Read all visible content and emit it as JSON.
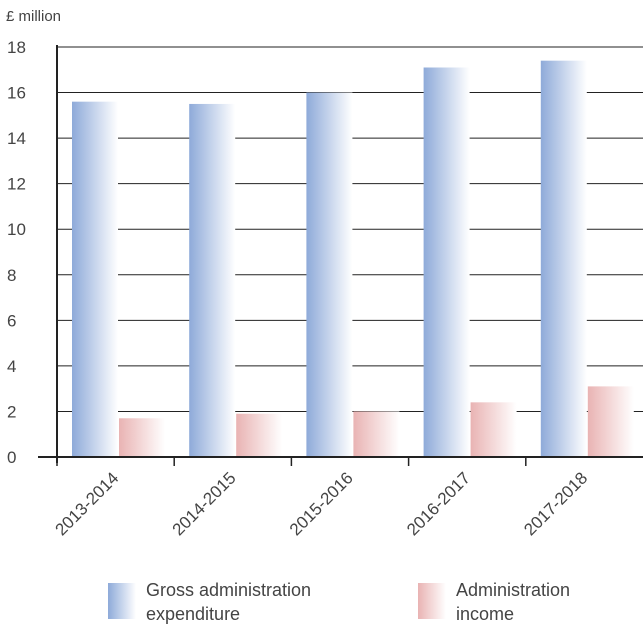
{
  "chart_data": {
    "type": "bar",
    "unit_label": "£ million",
    "categories": [
      "2013-2014",
      "2014-2015",
      "2015-2016",
      "2016-2017",
      "2017-2018"
    ],
    "series": [
      {
        "name": "Gross administration expenditure",
        "values": [
          15.6,
          15.5,
          16.0,
          17.1,
          17.4
        ],
        "color": "#8eaad9"
      },
      {
        "name": "Administration income",
        "values": [
          1.7,
          1.9,
          2.0,
          2.4,
          3.1
        ],
        "color": "#e9b3b3"
      }
    ],
    "ylim": [
      0,
      18
    ],
    "yticks": [
      0,
      2,
      4,
      6,
      8,
      10,
      12,
      14,
      16,
      18
    ],
    "grid": true,
    "legend_position": "bottom"
  },
  "legend": {
    "items": [
      {
        "line1": "Gross administration",
        "line2": "expenditure"
      },
      {
        "line1": "Administration",
        "line2": "income"
      }
    ]
  }
}
